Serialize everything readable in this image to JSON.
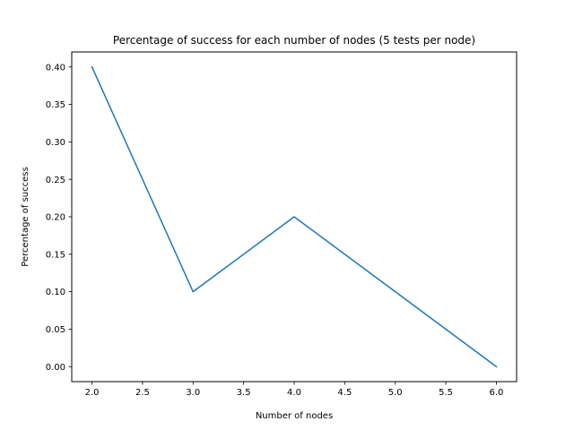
{
  "chart_data": {
    "type": "line",
    "title": "Percentage of success for each number of nodes (5 tests per node)",
    "xlabel": "Number of nodes",
    "ylabel": "Percentage of success",
    "x": [
      2,
      3,
      4,
      5,
      6
    ],
    "series": [
      {
        "values": [
          0.4,
          0.1,
          0.2,
          0.1,
          0.0
        ],
        "color": "#1f77b4"
      }
    ],
    "xlim": [
      1.8,
      6.2
    ],
    "ylim": [
      -0.02,
      0.42
    ],
    "xticks": [
      2.0,
      2.5,
      3.0,
      3.5,
      4.0,
      4.5,
      5.0,
      5.5,
      6.0
    ],
    "xtick_labels": [
      "2.0",
      "2.5",
      "3.0",
      "3.5",
      "4.0",
      "4.5",
      "5.0",
      "5.5",
      "6.0"
    ],
    "yticks": [
      0.0,
      0.05,
      0.1,
      0.15,
      0.2,
      0.25,
      0.3,
      0.35,
      0.4
    ],
    "ytick_labels": [
      "0.00",
      "0.05",
      "0.10",
      "0.15",
      "0.20",
      "0.25",
      "0.30",
      "0.35",
      "0.40"
    ],
    "grid": false,
    "legend": false
  }
}
